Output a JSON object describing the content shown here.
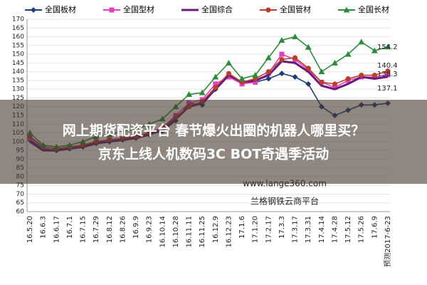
{
  "chart_data": {
    "type": "line",
    "categories": [
      "16.5.20",
      "16.6.3",
      "16.6.17",
      "16.7.1",
      "16.7.15",
      "16.7.29",
      "16.8.12",
      "16.8.26",
      "16.9.9",
      "16.9.23",
      "16.10.14",
      "16.10.28",
      "16.11.11",
      "16.11.25",
      "16.12.9",
      "16.12.23",
      "17.1.6",
      "17.1.20",
      "17.2.17",
      "17.3.3",
      "17.3.17",
      "17.3.31",
      "17.4.14",
      "17.4.28",
      "17.5.12",
      "17.5.26",
      "17.6.9",
      "预测2017-6-23"
    ],
    "series": [
      {
        "name": "全国板材",
        "color": "#1f3d7a",
        "marker": "diamond",
        "values": [
          101,
          96,
          95,
          96,
          97,
          99,
          100,
          101,
          102,
          104,
          106,
          112,
          122,
          121,
          130,
          138,
          134,
          134,
          136,
          139,
          137,
          133,
          120,
          115,
          118,
          121,
          121,
          122
        ]
      },
      {
        "name": "全国型材",
        "color": "#e040c0",
        "marker": "square",
        "values": [
          102,
          97,
          96,
          97,
          98,
          100,
          101,
          102,
          103,
          105,
          108,
          115,
          122,
          124,
          133,
          137,
          133,
          134,
          139,
          150,
          147,
          141,
          134,
          131,
          135,
          137,
          137,
          138.3
        ]
      },
      {
        "name": "全国综合",
        "color": "#6a1a7a",
        "marker": "none",
        "values": [
          100,
          95,
          95,
          96,
          97,
          99,
          100,
          101,
          102,
          104,
          107,
          113,
          120,
          122,
          130,
          138,
          134,
          135,
          138,
          146,
          145,
          140,
          132,
          130,
          133,
          137,
          136,
          137.1
        ]
      },
      {
        "name": "全国管材",
        "color": "#b8402a",
        "marker": "circle",
        "values": [
          103,
          97,
          96,
          97,
          98,
          100,
          101,
          102,
          103,
          105,
          108,
          114,
          120,
          123,
          131,
          139,
          134,
          136,
          140,
          147,
          148,
          142,
          134,
          133,
          136,
          138,
          138,
          140.4
        ]
      },
      {
        "name": "全国长材",
        "color": "#2e8b3a",
        "marker": "triangle",
        "values": [
          105,
          98,
          97,
          98,
          100,
          103,
          104,
          106,
          107,
          110,
          113,
          120,
          127,
          128,
          137,
          145,
          136,
          138,
          148,
          158,
          160,
          154,
          140,
          145,
          150,
          157,
          152,
          154.2
        ]
      }
    ],
    "annotations": [
      "154.2",
      "140.4",
      "138.3",
      "137.1"
    ],
    "ylim": [
      60,
      170
    ],
    "yticks": [
      60,
      65,
      70,
      75,
      80,
      85,
      90,
      95,
      100,
      105,
      110,
      115,
      120,
      125,
      130,
      135,
      140,
      145,
      150,
      155,
      160,
      165,
      170
    ],
    "grid": true
  },
  "watermark": [
    "www.lange360.com",
    "兰格钢铁云商平台"
  ],
  "overlay": [
    "网上期货配资平台 春节爆火出圈的机器人哪里买？",
    "京东上线人机数码3C BOT奇遇季活动"
  ]
}
